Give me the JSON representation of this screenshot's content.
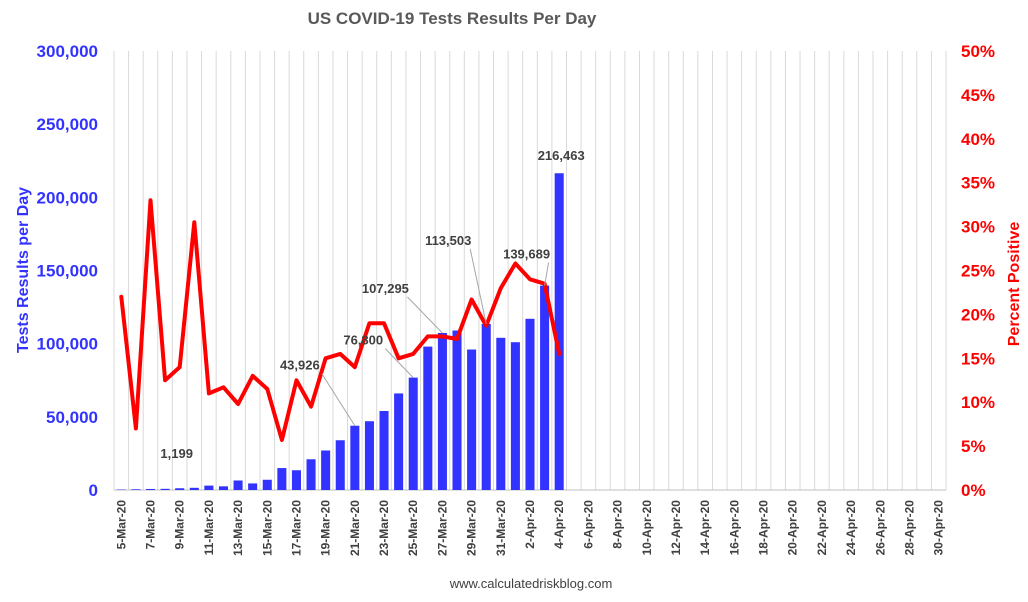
{
  "chart_data": {
    "type": "bar",
    "title": "US COVID-19 Tests Results Per Day",
    "footer": "www.calculatedriskblog.com",
    "y_left": {
      "label": "Tests Results per Day",
      "lim": [
        0,
        300000
      ],
      "ticks": [
        "0",
        "50,000",
        "100,000",
        "150,000",
        "200,000",
        "250,000",
        "300,000"
      ],
      "color": "#3333ff"
    },
    "y_right": {
      "label": "Percent Positive",
      "lim": [
        0,
        50
      ],
      "ticks": [
        "0%",
        "5%",
        "10%",
        "15%",
        "20%",
        "25%",
        "30%",
        "35%",
        "40%",
        "45%",
        "50%"
      ],
      "color": "#ff0000"
    },
    "x_tick_labels": [
      "5-Mar-20",
      "7-Mar-20",
      "9-Mar-20",
      "11-Mar-20",
      "13-Mar-20",
      "15-Mar-20",
      "17-Mar-20",
      "19-Mar-20",
      "21-Mar-20",
      "23-Mar-20",
      "25-Mar-20",
      "27-Mar-20",
      "29-Mar-20",
      "31-Mar-20",
      "2-Apr-20",
      "4-Apr-20",
      "6-Apr-20",
      "8-Apr-20",
      "10-Apr-20",
      "12-Apr-20",
      "14-Apr-20",
      "16-Apr-20",
      "18-Apr-20",
      "20-Apr-20",
      "22-Apr-20",
      "24-Apr-20",
      "26-Apr-20",
      "28-Apr-20",
      "30-Apr-20"
    ],
    "grid": "vertical",
    "series": [
      {
        "name": "Tests Results per Day",
        "type": "bar",
        "color": "#3333ff",
        "x": [
          "5-Mar-20",
          "6-Mar-20",
          "7-Mar-20",
          "8-Mar-20",
          "9-Mar-20",
          "10-Mar-20",
          "11-Mar-20",
          "12-Mar-20",
          "13-Mar-20",
          "14-Mar-20",
          "15-Mar-20",
          "16-Mar-20",
          "17-Mar-20",
          "18-Mar-20",
          "19-Mar-20",
          "20-Mar-20",
          "21-Mar-20",
          "22-Mar-20",
          "23-Mar-20",
          "24-Mar-20",
          "25-Mar-20",
          "26-Mar-20",
          "27-Mar-20",
          "28-Mar-20",
          "29-Mar-20",
          "30-Mar-20",
          "31-Mar-20",
          "1-Apr-20",
          "2-Apr-20",
          "3-Apr-20",
          "4-Apr-20"
        ],
        "values": [
          300,
          500,
          700,
          800,
          1199,
          1500,
          3000,
          2500,
          6500,
          4500,
          7000,
          15000,
          13500,
          21000,
          27000,
          34000,
          43926,
          47000,
          54000,
          66000,
          76800,
          98000,
          107295,
          109000,
          96000,
          113503,
          104000,
          101000,
          117000,
          139689,
          216463
        ]
      },
      {
        "name": "Percent Positive",
        "type": "line",
        "color": "#ff0000",
        "x": [
          "5-Mar-20",
          "6-Mar-20",
          "7-Mar-20",
          "8-Mar-20",
          "9-Mar-20",
          "10-Mar-20",
          "11-Mar-20",
          "12-Mar-20",
          "13-Mar-20",
          "14-Mar-20",
          "15-Mar-20",
          "16-Mar-20",
          "17-Mar-20",
          "18-Mar-20",
          "19-Mar-20",
          "20-Mar-20",
          "21-Mar-20",
          "22-Mar-20",
          "23-Mar-20",
          "24-Mar-20",
          "25-Mar-20",
          "26-Mar-20",
          "27-Mar-20",
          "28-Mar-20",
          "29-Mar-20",
          "30-Mar-20",
          "31-Mar-20",
          "1-Apr-20",
          "2-Apr-20",
          "3-Apr-20",
          "4-Apr-20"
        ],
        "values": [
          22,
          7,
          33,
          12.5,
          14,
          30.5,
          11,
          11.7,
          9.8,
          13,
          11.5,
          5.7,
          12.5,
          9.5,
          15,
          15.5,
          14,
          19,
          19,
          15,
          15.5,
          17.5,
          17.5,
          17.2,
          21.7,
          18.7,
          23,
          25.8,
          24,
          23.5,
          15.5
        ]
      }
    ],
    "data_labels": [
      {
        "x": "9-Mar-20",
        "text": "1,199"
      },
      {
        "x": "21-Mar-20",
        "text": "43,926"
      },
      {
        "x": "25-Mar-20",
        "text": "76,800"
      },
      {
        "x": "27-Mar-20",
        "text": "107,295"
      },
      {
        "x": "30-Mar-20",
        "text": "113,503"
      },
      {
        "x": "3-Apr-20",
        "text": "139,689"
      },
      {
        "x": "4-Apr-20",
        "text": "216,463"
      }
    ]
  }
}
